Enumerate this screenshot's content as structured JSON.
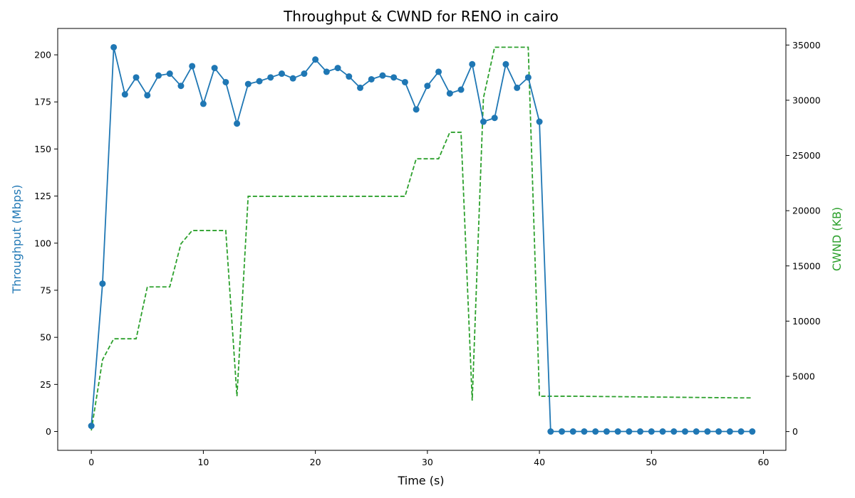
{
  "chart_data": {
    "type": "line",
    "title": "Throughput & CWND for RENO in cairo",
    "xlabel": "Time (s)",
    "ylabel_left": "Throughput (Mbps)",
    "ylabel_right": "CWND (KB)",
    "xlim": [
      -3,
      62
    ],
    "ylim_left": [
      -10,
      214
    ],
    "ylim_right": [
      -1700,
      36500
    ],
    "x_ticks": [
      0,
      10,
      20,
      30,
      40,
      50,
      60
    ],
    "y_ticks_left": [
      0,
      25,
      50,
      75,
      100,
      125,
      150,
      175,
      200
    ],
    "y_ticks_right": [
      0,
      5000,
      10000,
      15000,
      20000,
      25000,
      30000,
      35000
    ],
    "grid": false,
    "legend": "none",
    "series": [
      {
        "name": "Throughput (Mbps)",
        "axis": "left",
        "color": "#1f77b4",
        "style": "solid",
        "marker": "circle",
        "x": [
          0,
          1,
          2,
          3,
          4,
          5,
          6,
          7,
          8,
          9,
          10,
          11,
          12,
          13,
          14,
          15,
          16,
          17,
          18,
          19,
          20,
          21,
          22,
          23,
          24,
          25,
          26,
          27,
          28,
          29,
          30,
          31,
          32,
          33,
          34,
          35,
          36,
          37,
          38,
          39,
          40,
          41,
          42,
          43,
          44,
          45,
          46,
          47,
          48,
          49,
          50,
          51,
          52,
          53,
          54,
          55,
          56,
          57,
          58,
          59
        ],
        "values": [
          3,
          78.5,
          204,
          179,
          188,
          178.5,
          189,
          190,
          183.5,
          194,
          174,
          193,
          185.5,
          163.5,
          184.5,
          186,
          188,
          190,
          187.5,
          190,
          197.5,
          191,
          193,
          188.5,
          182.5,
          187,
          189,
          188,
          185.5,
          171,
          183.5,
          191,
          179.5,
          181.5,
          195,
          164.5,
          166.5,
          195,
          182.5,
          188,
          164.5,
          0,
          0,
          0,
          0,
          0,
          0,
          0,
          0,
          0,
          0,
          0,
          0,
          0,
          0,
          0,
          0,
          0,
          0,
          0
        ]
      },
      {
        "name": "CWND (KB)",
        "axis": "right",
        "color": "#2ca02c",
        "style": "dashed",
        "marker": "none",
        "x": [
          0,
          1,
          2,
          3,
          4,
          5,
          6,
          7,
          8,
          9,
          10,
          11,
          12,
          13,
          14,
          15,
          16,
          17,
          18,
          19,
          20,
          21,
          22,
          23,
          24,
          25,
          26,
          27,
          28,
          29,
          30,
          31,
          32,
          33,
          34,
          35,
          36,
          37,
          38,
          39,
          40,
          41,
          42,
          43,
          44,
          45,
          46,
          47,
          48,
          49,
          50,
          51,
          52,
          53,
          54,
          55,
          56,
          57,
          58,
          59
        ],
        "values": [
          100,
          6500,
          8400,
          8400,
          8400,
          13100,
          13100,
          13100,
          17000,
          18200,
          18200,
          18200,
          18200,
          3200,
          21300,
          21300,
          21300,
          21300,
          21300,
          21300,
          21300,
          21300,
          21300,
          21300,
          21300,
          21300,
          21300,
          21300,
          21300,
          24700,
          24700,
          24700,
          27100,
          27100,
          2800,
          30200,
          34800,
          34800,
          34800,
          34800,
          3200,
          3200,
          3200,
          3200,
          3190,
          3180,
          3170,
          3160,
          3150,
          3140,
          3130,
          3120,
          3110,
          3100,
          3090,
          3080,
          3070,
          3060,
          3050,
          3050
        ]
      }
    ],
    "colors": {
      "left_axis_label": "#1f77b4",
      "right_axis_label": "#2ca02c"
    }
  }
}
